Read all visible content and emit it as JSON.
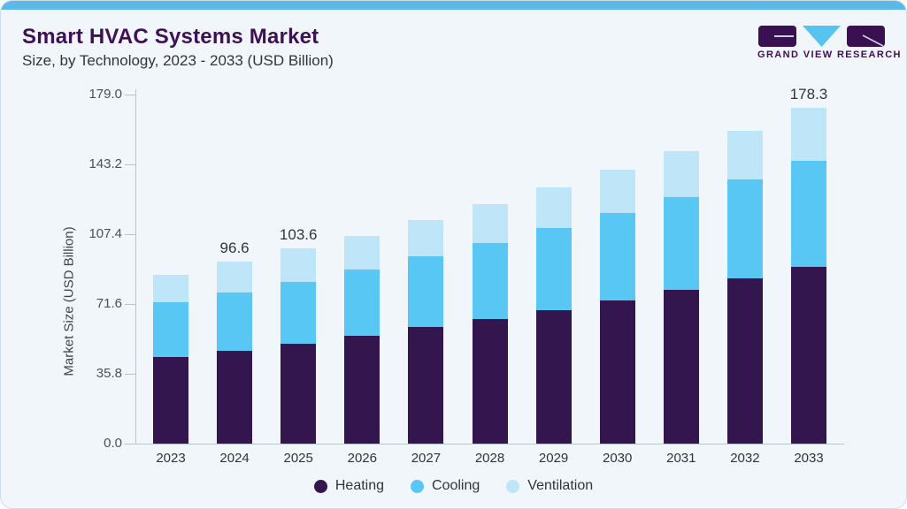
{
  "header": {
    "title": "Smart HVAC Systems Market",
    "subtitle": "Size, by Technology, 2023 - 2033 (USD Billion)"
  },
  "logo": {
    "text": "GRAND VIEW RESEARCH",
    "brand_purple": "#3b1053",
    "brand_blue": "#56c4ef"
  },
  "chart_data": {
    "type": "bar",
    "stacked": true,
    "title": "Smart HVAC Systems Market Size, by Technology, 2023 - 2033 (USD Billion)",
    "categories": [
      "2023",
      "2024",
      "2025",
      "2026",
      "2027",
      "2028",
      "2029",
      "2030",
      "2031",
      "2032",
      "2033"
    ],
    "series": [
      {
        "name": "Heating",
        "color": "#32164d",
        "values": [
          45.8,
          49.2,
          52.9,
          57.1,
          61.9,
          66.1,
          70.8,
          76.0,
          81.8,
          87.6,
          94.0
        ]
      },
      {
        "name": "Cooling",
        "color": "#58c7f3",
        "values": [
          29.4,
          31.0,
          33.1,
          35.3,
          37.4,
          40.4,
          43.6,
          46.4,
          49.1,
          52.5,
          56.2
        ]
      },
      {
        "name": "Ventilation",
        "color": "#bfe6f8",
        "values": [
          14.4,
          16.4,
          17.6,
          18.0,
          19.5,
          20.5,
          21.6,
          23.1,
          24.4,
          26.1,
          28.1
        ]
      }
    ],
    "totals_estimated": [
      89.6,
      96.6,
      103.6,
      110.4,
      118.8,
      127.0,
      136.0,
      145.5,
      155.3,
      166.2,
      178.3
    ],
    "bar_total_labels": {
      "2024": "96.6",
      "2025": "103.6",
      "2033": "178.3"
    },
    "ylabel": "Market Size (USD Billion)",
    "yticks": [
      0.0,
      35.8,
      71.6,
      107.4,
      143.2,
      179.0
    ],
    "ytick_labels": [
      "0.0",
      "35.8",
      "71.6",
      "107.4",
      "143.2",
      "179.0"
    ],
    "ylim": [
      0,
      179
    ],
    "grid": false,
    "legend": {
      "position": "bottom",
      "items": [
        "Heating",
        "Cooling",
        "Ventilation"
      ]
    }
  }
}
